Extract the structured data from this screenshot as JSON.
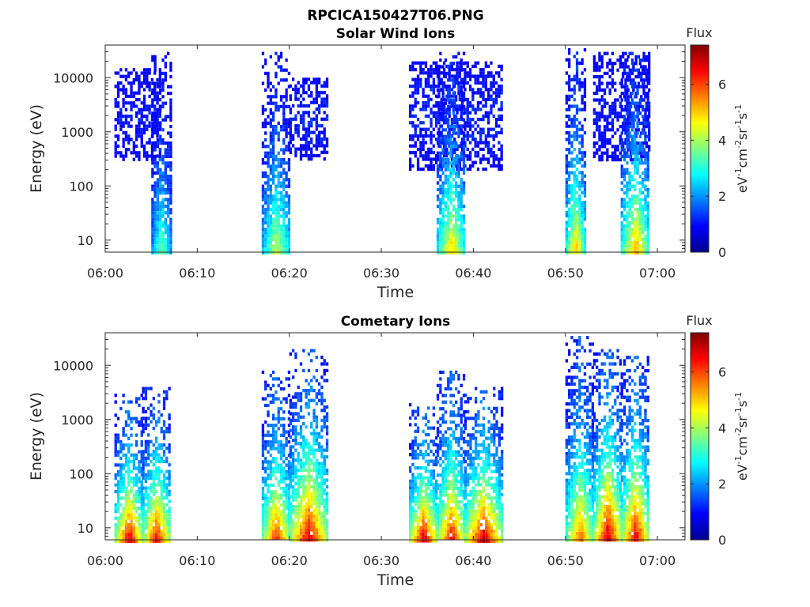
{
  "figure": {
    "title": "RPCICA150427T06.PNG"
  },
  "colorscale": "jet",
  "chart_data": [
    {
      "type": "heatmap",
      "title": "Solar Wind Ions",
      "xlabel": "Time",
      "ylabel": "Energy (eV)",
      "yscale": "log",
      "xlim": [
        "06:00",
        "07:03"
      ],
      "ylim": [
        6,
        40000
      ],
      "xticks": [
        "06:00",
        "06:10",
        "06:20",
        "06:30",
        "06:40",
        "06:50",
        "07:00"
      ],
      "yticks": [
        "10",
        "100",
        "1000",
        "10000"
      ],
      "colorbar": {
        "label": "Flux",
        "units": "eV-1cm-2sr-1s-1",
        "range": [
          0,
          7.4
        ],
        "ticks": [
          "0",
          "2",
          "4",
          "6"
        ]
      },
      "bursts": [
        {
          "start": "06:01",
          "end": "06:06",
          "emin": 300,
          "emax": 15000,
          "peak_flux": 1.6,
          "low_tail": false
        },
        {
          "start": "06:05",
          "end": "06:07",
          "emin": 6,
          "emax": 30000,
          "peak_flux": 3.8,
          "low_tail": true
        },
        {
          "start": "06:17",
          "end": "06:20",
          "emin": 6,
          "emax": 30000,
          "peak_flux": 4.4,
          "low_tail": true
        },
        {
          "start": "06:20",
          "end": "06:24",
          "emin": 300,
          "emax": 10000,
          "peak_flux": 1.8,
          "low_tail": false
        },
        {
          "start": "06:33",
          "end": "06:43",
          "emin": 200,
          "emax": 20000,
          "peak_flux": 1.8,
          "low_tail": false
        },
        {
          "start": "06:36",
          "end": "06:39",
          "emin": 6,
          "emax": 30000,
          "peak_flux": 5.2,
          "low_tail": true
        },
        {
          "start": "06:50",
          "end": "06:52",
          "emin": 6,
          "emax": 35000,
          "peak_flux": 5.4,
          "low_tail": true
        },
        {
          "start": "06:53",
          "end": "06:59",
          "emin": 300,
          "emax": 30000,
          "peak_flux": 1.6,
          "low_tail": false
        },
        {
          "start": "06:56",
          "end": "06:59",
          "emin": 6,
          "emax": 30000,
          "peak_flux": 5.6,
          "low_tail": true
        }
      ]
    },
    {
      "type": "heatmap",
      "title": "Cometary Ions",
      "xlabel": "Time",
      "ylabel": "Energy (eV)",
      "yscale": "log",
      "xlim": [
        "06:00",
        "07:03"
      ],
      "ylim": [
        6,
        40000
      ],
      "xticks": [
        "06:00",
        "06:10",
        "06:20",
        "06:30",
        "06:40",
        "06:50",
        "07:00"
      ],
      "yticks": [
        "10",
        "100",
        "1000",
        "10000"
      ],
      "colorbar": {
        "label": "Flux",
        "units": "eV-1cm-2sr-1s-1",
        "range": [
          0,
          7.4
        ],
        "ticks": [
          "0",
          "2",
          "4",
          "6"
        ]
      },
      "bursts": [
        {
          "start": "06:01",
          "end": "06:04",
          "emin": 6,
          "emax": 3000,
          "peak_flux": 7.0,
          "low_tail": true
        },
        {
          "start": "06:04",
          "end": "06:07",
          "emin": 6,
          "emax": 4000,
          "peak_flux": 6.8,
          "low_tail": true
        },
        {
          "start": "06:17",
          "end": "06:20",
          "emin": 6,
          "emax": 8000,
          "peak_flux": 6.6,
          "low_tail": true
        },
        {
          "start": "06:20",
          "end": "06:24",
          "emin": 6,
          "emax": 20000,
          "peak_flux": 7.1,
          "low_tail": true
        },
        {
          "start": "06:33",
          "end": "06:36",
          "emin": 6,
          "emax": 2000,
          "peak_flux": 7.2,
          "low_tail": true
        },
        {
          "start": "06:36",
          "end": "06:39",
          "emin": 6,
          "emax": 8000,
          "peak_flux": 6.9,
          "low_tail": true
        },
        {
          "start": "06:39",
          "end": "06:43",
          "emin": 6,
          "emax": 4000,
          "peak_flux": 7.3,
          "low_tail": true
        },
        {
          "start": "06:50",
          "end": "06:53",
          "emin": 6,
          "emax": 35000,
          "peak_flux": 6.0,
          "low_tail": true
        },
        {
          "start": "06:53",
          "end": "06:56",
          "emin": 6,
          "emax": 20000,
          "peak_flux": 7.3,
          "low_tail": true
        },
        {
          "start": "06:56",
          "end": "06:59",
          "emin": 6,
          "emax": 15000,
          "peak_flux": 7.1,
          "low_tail": true
        }
      ]
    }
  ]
}
